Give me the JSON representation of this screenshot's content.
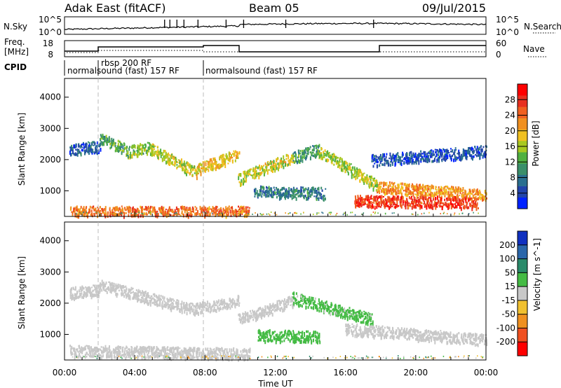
{
  "header": {
    "station": "Adak East (fitACF)",
    "beam": "Beam 05",
    "date": "09/Jul/2015"
  },
  "panels": {
    "nsky": {
      "label": "N.Sky",
      "right_label": "N.Search",
      "yticks": [
        "10^5",
        "10^0"
      ],
      "right_ticks": [
        "10^5",
        "10^0"
      ]
    },
    "freq": {
      "label_line1": "Freq.",
      "label_line2": "[MHz]",
      "right_label": "Nave",
      "yticks": [
        "18",
        "8"
      ],
      "right_ticks": [
        "60",
        "0"
      ]
    },
    "cpid": {
      "label": "CPID",
      "segments": [
        {
          "text": "normalsound (fast) 157 RF",
          "start_h": 0.0
        },
        {
          "text": "rbsp 200 RF",
          "start_h": 2.0
        },
        {
          "text": "normalsound (fast) 157 RF",
          "start_h": 8.0
        }
      ]
    }
  },
  "axes": {
    "xlabel": "Time UT",
    "xticks": [
      "00:00",
      "04:00",
      "08:00",
      "12:00",
      "16:00",
      "20:00",
      "00:00"
    ],
    "ylabel": "Slant Range [km]",
    "yticks": [
      "1000",
      "2000",
      "3000",
      "4000"
    ]
  },
  "colorbars": {
    "power": {
      "label": "Power [dB]",
      "ticks": [
        "4",
        "8",
        "12",
        "16",
        "20",
        "24",
        "28"
      ],
      "colors": [
        "#0022ff",
        "#2244aa",
        "#2a6f8f",
        "#3a8f6a",
        "#50b040",
        "#a8c820",
        "#f0c020",
        "#f09020",
        "#f06020",
        "#e83020",
        "#ff0000"
      ]
    },
    "velocity": {
      "label": "Velocity [m s^-1]",
      "ticks": [
        "200",
        "100",
        "50",
        "15",
        "-15",
        "-50",
        "-100",
        "-200"
      ],
      "colors": [
        "#1030c0",
        "#2a66aa",
        "#2a8a6a",
        "#44bb44",
        "#c8c8c8",
        "#f0c030",
        "#f09020",
        "#f05020",
        "#ff0000"
      ]
    }
  },
  "chart_data": [
    {
      "type": "heatmap",
      "title": "",
      "xlabel": "Time UT",
      "ylabel": "Slant Range [km]",
      "xlim": [
        0,
        24
      ],
      "ylim": [
        180,
        4600
      ],
      "colorbar": "Power [dB]",
      "clim": [
        0,
        32
      ],
      "bands": [
        {
          "from_h": 0.3,
          "to_h": 2.0,
          "range_km": [
            2350,
            2450
          ],
          "value": 6
        },
        {
          "from_h": 2.0,
          "to_h": 3.5,
          "range_km": [
            2700,
            2350
          ],
          "value": 12
        },
        {
          "from_h": 3.5,
          "to_h": 4.8,
          "range_km": [
            2250,
            2450
          ],
          "value": 14
        },
        {
          "from_h": 4.8,
          "to_h": 7.5,
          "range_km": [
            2400,
            1600
          ],
          "value": 17
        },
        {
          "from_h": 7.5,
          "to_h": 9.9,
          "range_km": [
            1700,
            2200
          ],
          "value": 19
        },
        {
          "from_h": 9.9,
          "to_h": 13.0,
          "range_km": [
            1400,
            2100
          ],
          "value": 17
        },
        {
          "from_h": 13.0,
          "to_h": 14.5,
          "range_km": [
            2100,
            2350
          ],
          "value": 11
        },
        {
          "from_h": 14.5,
          "to_h": 17.8,
          "range_km": [
            2300,
            1200
          ],
          "value": 16
        },
        {
          "from_h": 17.8,
          "to_h": 24.0,
          "range_km": [
            1150,
            900
          ],
          "value": 22
        },
        {
          "from_h": 10.8,
          "to_h": 14.8,
          "range_km": [
            1000,
            950
          ],
          "value": 8
        },
        {
          "from_h": 17.5,
          "to_h": 24.0,
          "range_km": [
            2000,
            2300
          ],
          "value": 5
        },
        {
          "from_h": 0.3,
          "to_h": 10.5,
          "range_km": [
            350,
            350
          ],
          "value": 24
        },
        {
          "from_h": 16.5,
          "to_h": 23.5,
          "range_km": [
            700,
            650
          ],
          "value": 27
        }
      ]
    },
    {
      "type": "heatmap",
      "title": "",
      "xlabel": "Time UT",
      "ylabel": "Slant Range [km]",
      "xlim": [
        0,
        24
      ],
      "ylim": [
        180,
        4600
      ],
      "colorbar": "Velocity [m s^-1]",
      "clim": [
        -200,
        200
      ],
      "bands": [
        {
          "from_h": 0.3,
          "to_h": 2.0,
          "range_km": [
            2350,
            2450
          ],
          "value": 0
        },
        {
          "from_h": 2.0,
          "to_h": 7.5,
          "range_km": [
            2600,
            1800
          ],
          "value": 0
        },
        {
          "from_h": 7.5,
          "to_h": 9.9,
          "range_km": [
            1850,
            2100
          ],
          "value": 5
        },
        {
          "from_h": 9.9,
          "to_h": 13.0,
          "range_km": [
            1500,
            2100
          ],
          "value": 0
        },
        {
          "from_h": 13.0,
          "to_h": 17.5,
          "range_km": [
            2200,
            1500
          ],
          "value": 30
        },
        {
          "from_h": 16.0,
          "to_h": 24.0,
          "range_km": [
            1200,
            850
          ],
          "value": 0
        },
        {
          "from_h": 0.3,
          "to_h": 10.5,
          "range_km": [
            500,
            400
          ],
          "value": 0
        },
        {
          "from_h": 11.0,
          "to_h": 14.5,
          "range_km": [
            1000,
            950
          ],
          "value": 40
        }
      ]
    }
  ]
}
